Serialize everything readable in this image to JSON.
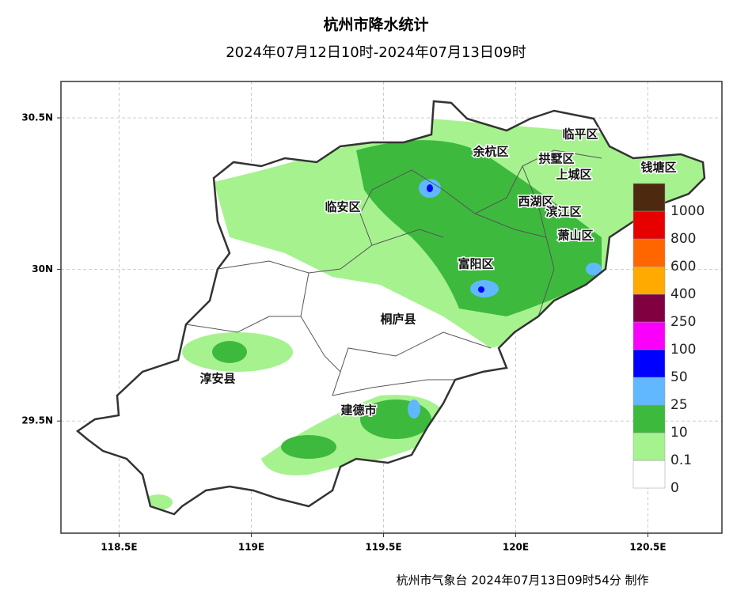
{
  "title": "杭州市降水统计",
  "subtitle": "2024年07月12日10时-2024年07月13日09时",
  "footer": "杭州市气象台 2024年07月13日09时54分 制作",
  "map": {
    "xlim": [
      118.28,
      120.78
    ],
    "ylim": [
      29.13,
      30.62
    ],
    "grid": true,
    "xticks": [
      {
        "value": 118.5,
        "label": "118.5E"
      },
      {
        "value": 119,
        "label": "119E"
      },
      {
        "value": 119.5,
        "label": "119.5E"
      },
      {
        "value": 120,
        "label": "120E"
      },
      {
        "value": 120.5,
        "label": "120.5E"
      }
    ],
    "yticks": [
      {
        "value": 29.5,
        "label": "29.5N"
      },
      {
        "value": 30,
        "label": "30N"
      },
      {
        "value": 30.5,
        "label": "30.5N"
      }
    ],
    "districts": [
      "临安区",
      "余杭区",
      "临平区",
      "拱墅区",
      "上城区",
      "钱塘区",
      "西湖区",
      "滨江区",
      "萧山区",
      "富阳区",
      "桐庐县",
      "淳安县",
      "建德市"
    ],
    "legend": {
      "levels": [
        {
          "value": 0,
          "color": "#ffffff"
        },
        {
          "value": 0.1,
          "color": "#a6f28f"
        },
        {
          "value": 10,
          "color": "#3dba3d"
        },
        {
          "value": 25,
          "color": "#61b8ff"
        },
        {
          "value": 50,
          "color": "#0000ff"
        },
        {
          "value": 100,
          "color": "#fa00fa"
        },
        {
          "value": 250,
          "color": "#800040"
        },
        {
          "value": 400,
          "color": "#ffaa00"
        },
        {
          "value": 600,
          "color": "#ff6600"
        },
        {
          "value": 800,
          "color": "#e60000"
        },
        {
          "value": 1000,
          "color": "#4d2a0f"
        }
      ]
    }
  }
}
